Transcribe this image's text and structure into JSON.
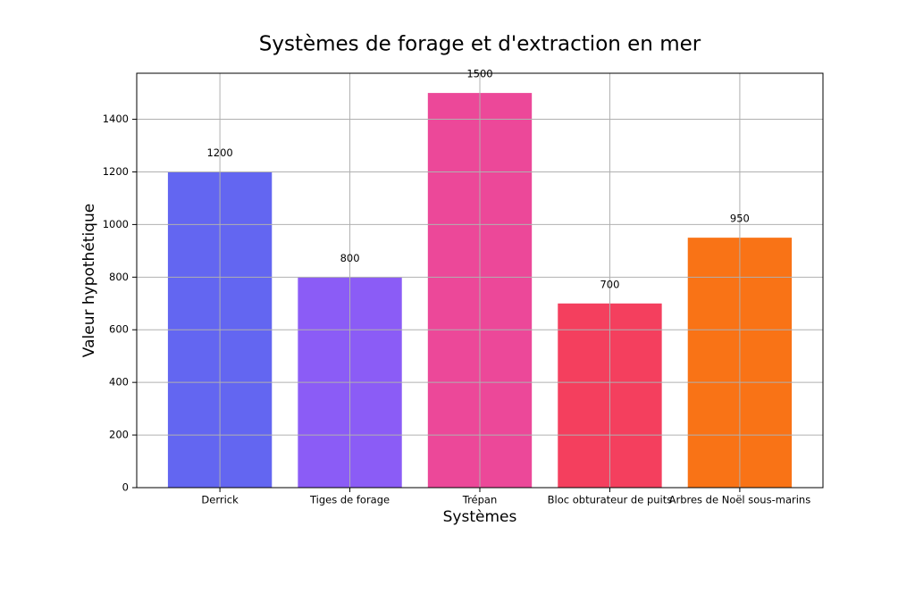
{
  "chart_data": {
    "type": "bar",
    "title": "Systèmes de forage et d'extraction en mer",
    "x_label": "Systèmes",
    "y_label": "Valeur hypothétique",
    "categories": [
      "Derrick",
      "Tiges de forage",
      "Trépan",
      "Bloc obturateur de puits",
      "Arbres de Noël sous-marins"
    ],
    "values": [
      1200,
      800,
      1500,
      700,
      950
    ],
    "colors": [
      "#6366f1",
      "#8b5cf6",
      "#ec4899",
      "#f43f5e",
      "#f97316"
    ],
    "ylim": [
      0,
      1575
    ],
    "yticks": [
      0,
      200,
      400,
      600,
      800,
      1000,
      1200,
      1400
    ],
    "grid": true
  }
}
